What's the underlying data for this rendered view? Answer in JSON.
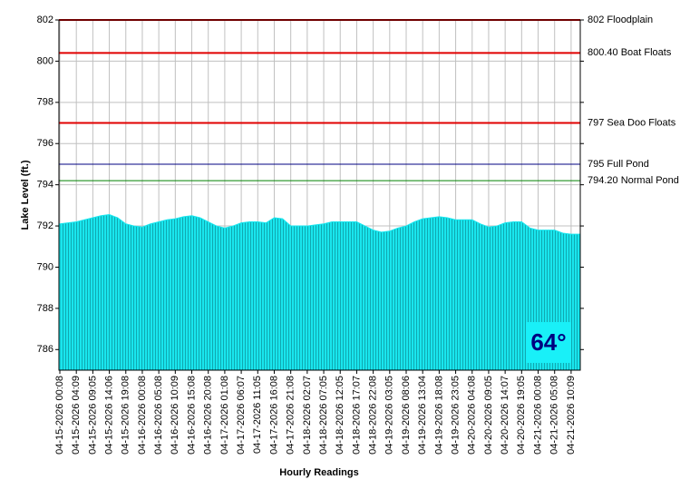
{
  "chart_data": {
    "type": "area",
    "y_label": "Lake Level (ft.)",
    "x_label": "Hourly Readings",
    "annotation": "64°",
    "categories": [
      "04-15-2026 00:08",
      null,
      "04-15-2026 04:09",
      null,
      "04-15-2026 09:05",
      null,
      "04-15-2026 14:06",
      null,
      "04-15-2026 19:08",
      null,
      "04-16-2026 00:08",
      null,
      "04-16-2026 05:08",
      null,
      "04-16-2026 10:09",
      null,
      "04-16-2026 15:08",
      null,
      "04-16-2026 20:08",
      null,
      "04-17-2026 01:08",
      null,
      "04-17-2026 06:07",
      null,
      "04-17-2026 11:05",
      null,
      "04-17-2026 16:08",
      null,
      "04-17-2026 21:08",
      null,
      "04-18-2026 02:07",
      null,
      "04-18-2026 07:05",
      null,
      "04-18-2026 12:05",
      null,
      "04-18-2026 17:07",
      null,
      "04-18-2026 22:08",
      null,
      "04-19-2026 03:05",
      null,
      "04-19-2026 08:06",
      null,
      "04-19-2026 13:04",
      null,
      "04-19-2026 18:08",
      null,
      "04-19-2026 23:05",
      null,
      "04-20-2026 04:08",
      null,
      "04-20-2026 09:05",
      null,
      "04-20-2026 14:07",
      null,
      "04-20-2026 19:05",
      null,
      "04-21-2026 00:08",
      null,
      "04-21-2026 05:08",
      null,
      "04-21-2026 10:09",
      null
    ],
    "series": [
      {
        "color": "#19e6ee",
        "values": [
          792.1,
          792.15,
          792.2,
          792.3,
          792.4,
          792.5,
          792.55,
          792.4,
          792.1,
          792.0,
          791.95,
          792.1,
          792.2,
          792.3,
          792.35,
          792.45,
          792.5,
          792.4,
          792.2,
          792.0,
          791.9,
          792.0,
          792.15,
          792.2,
          792.2,
          792.15,
          792.4,
          792.35,
          792.0,
          792.0,
          792.0,
          792.05,
          792.1,
          792.2,
          792.2,
          792.2,
          792.2,
          792.0,
          791.8,
          791.7,
          791.75,
          791.9,
          792.0,
          792.2,
          792.35,
          792.4,
          792.45,
          792.4,
          792.3,
          792.3,
          792.3,
          792.1,
          791.95,
          792.0,
          792.15,
          792.2,
          792.2,
          791.9,
          791.8,
          791.8,
          791.8,
          791.65,
          791.6,
          791.6
        ]
      }
    ],
    "ylim": [
      785,
      802
    ],
    "yticks": [
      786,
      788,
      790,
      792,
      794,
      796,
      798,
      800,
      802
    ],
    "grid": true,
    "reference_lines": [
      {
        "value": 802,
        "label": "802 Floodplain",
        "color": "#e00000"
      },
      {
        "value": 800.4,
        "label": "800.40 Boat Floats",
        "color": "#e00000"
      },
      {
        "value": 797,
        "label": "797 Sea Doo Floats",
        "color": "#e00000"
      },
      {
        "value": 795,
        "label": "795 Full Pond",
        "color": "#000080"
      },
      {
        "value": 794.2,
        "label": "794.20 Normal Pond",
        "color": "#008000"
      }
    ]
  }
}
